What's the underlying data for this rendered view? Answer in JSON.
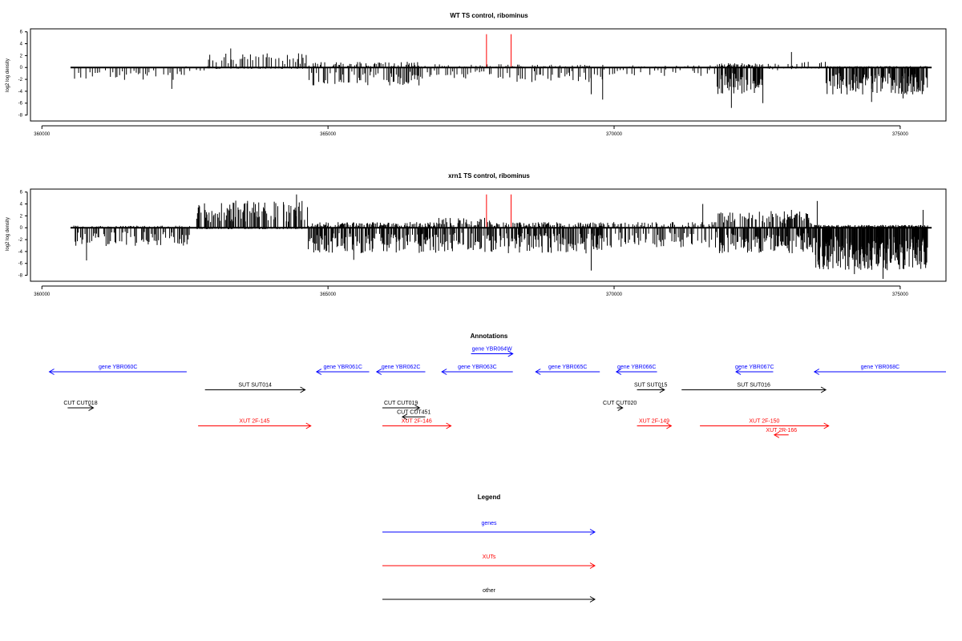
{
  "chart_data": [
    {
      "type": "bar",
      "title": "WT TS control, ribominus",
      "xlabel": "",
      "ylabel": "log2 log density",
      "xlim": [
        359800,
        375800
      ],
      "ylim": [
        -9,
        6.5
      ],
      "x_ticks": [
        360000,
        365000,
        370000,
        375000
      ],
      "y_ticks": [
        6,
        4,
        2,
        0,
        -2,
        -4,
        -6,
        -8
      ],
      "baseline_x": [
        360500,
        375550
      ],
      "red_markers": [
        {
          "x": 367770,
          "y": 5.6
        },
        {
          "x": 368200,
          "y": 5.6
        }
      ],
      "profile": [
        {
          "from": 360550,
          "to": 362500,
          "step": 40,
          "pos": 0.0,
          "neg": 1.8
        },
        {
          "from": 362500,
          "to": 362900,
          "step": 60,
          "pos": 0.2,
          "neg": 0.6
        },
        {
          "from": 362900,
          "to": 364650,
          "step": 25,
          "pos": 2.0,
          "neg": 0.2
        },
        {
          "from": 364650,
          "to": 366600,
          "step": 20,
          "pos": 0.8,
          "neg": 2.6
        },
        {
          "from": 366600,
          "to": 368200,
          "step": 40,
          "pos": 0.5,
          "neg": 1.6
        },
        {
          "from": 368200,
          "to": 369800,
          "step": 30,
          "pos": 0.4,
          "neg": 2.2
        },
        {
          "from": 369800,
          "to": 371800,
          "step": 50,
          "pos": 0.3,
          "neg": 1.2
        },
        {
          "from": 371800,
          "to": 372600,
          "step": 12,
          "pos": 0.6,
          "neg": 3.8
        },
        {
          "from": 372600,
          "to": 373700,
          "step": 50,
          "pos": 0.8,
          "neg": 0.5
        },
        {
          "from": 373700,
          "to": 375480,
          "step": 10,
          "pos": 0.2,
          "neg": 3.8
        }
      ],
      "spikes": [
        {
          "x": 362270,
          "y": -3.6
        },
        {
          "x": 363300,
          "y": 3.2
        },
        {
          "x": 369600,
          "y": -4.5
        },
        {
          "x": 369800,
          "y": -5.4
        },
        {
          "x": 372050,
          "y": -6.8
        },
        {
          "x": 372600,
          "y": -6.0
        },
        {
          "x": 373100,
          "y": 2.6
        },
        {
          "x": 374500,
          "y": -5.8
        },
        {
          "x": 375050,
          "y": -5.2
        }
      ]
    },
    {
      "type": "bar",
      "title": "xrn1 TS control, ribominus",
      "xlabel": "",
      "ylabel": "log2 log density",
      "xlim": [
        359800,
        375800
      ],
      "ylim": [
        -9,
        6.5
      ],
      "x_ticks": [
        360000,
        365000,
        370000,
        375000
      ],
      "y_ticks": [
        6,
        4,
        2,
        0,
        -2,
        -4,
        -6,
        -8
      ],
      "baseline_x": [
        360500,
        375550
      ],
      "red_markers": [
        {
          "x": 367770,
          "y": 5.6
        },
        {
          "x": 368200,
          "y": 5.6
        }
      ],
      "profile": [
        {
          "from": 360550,
          "to": 362600,
          "step": 20,
          "pos": 0.3,
          "neg": 2.6
        },
        {
          "from": 362700,
          "to": 364650,
          "step": 12,
          "pos": 3.8,
          "neg": 0.2
        },
        {
          "from": 364650,
          "to": 366900,
          "step": 12,
          "pos": 0.8,
          "neg": 3.6
        },
        {
          "from": 366900,
          "to": 367900,
          "step": 15,
          "pos": 1.4,
          "neg": 3.4
        },
        {
          "from": 367900,
          "to": 369800,
          "step": 12,
          "pos": 0.8,
          "neg": 3.6
        },
        {
          "from": 369800,
          "to": 371800,
          "step": 20,
          "pos": 0.8,
          "neg": 2.8
        },
        {
          "from": 371800,
          "to": 373500,
          "step": 12,
          "pos": 2.4,
          "neg": 3.6
        },
        {
          "from": 373500,
          "to": 375480,
          "step": 6,
          "pos": 0.4,
          "neg": 6.0
        }
      ],
      "spikes": [
        {
          "x": 360780,
          "y": -5.5
        },
        {
          "x": 364450,
          "y": 5.6
        },
        {
          "x": 365450,
          "y": -5.4
        },
        {
          "x": 369600,
          "y": -7.2
        },
        {
          "x": 371550,
          "y": 4.0
        },
        {
          "x": 373100,
          "y": 3.0
        },
        {
          "x": 373550,
          "y": 4.5
        },
        {
          "x": 374200,
          "y": -7.8
        },
        {
          "x": 374700,
          "y": -8.6
        },
        {
          "x": 375400,
          "y": 3.0
        }
      ]
    }
  ],
  "annotations": {
    "title": "Annotations",
    "features": [
      {
        "label": "gene YBR060C",
        "kind": "gene",
        "color": "#0000ff",
        "from": 362530,
        "to": 360130,
        "row": 0
      },
      {
        "label": "gene YBR061C",
        "kind": "gene",
        "color": "#0000ff",
        "from": 365720,
        "to": 364800,
        "row": 0
      },
      {
        "label": "gene YBR062C",
        "kind": "gene",
        "color": "#0000ff",
        "from": 366700,
        "to": 365850,
        "row": 0
      },
      {
        "label": "gene YBR063C",
        "kind": "gene",
        "color": "#0000ff",
        "from": 368230,
        "to": 366990,
        "row": 0
      },
      {
        "label": "gene YBR064W",
        "kind": "gene",
        "color": "#0000ff",
        "from": 367500,
        "to": 368230,
        "row": -1
      },
      {
        "label": "gene YBR065C",
        "kind": "gene",
        "color": "#0000ff",
        "from": 369750,
        "to": 368630,
        "row": 0
      },
      {
        "label": "gene YBR066C",
        "kind": "gene",
        "color": "#0000ff",
        "from": 370750,
        "to": 370040,
        "row": 0
      },
      {
        "label": "gene YBR067C",
        "kind": "gene",
        "color": "#0000ff",
        "from": 372780,
        "to": 372130,
        "row": 0
      },
      {
        "label": "gene YBR068C",
        "kind": "gene",
        "color": "#0000ff",
        "from": 375800,
        "to": 373500,
        "row": 0
      },
      {
        "label": "SUT SUT014",
        "kind": "other",
        "color": "#000000",
        "from": 362850,
        "to": 364600,
        "row": 1
      },
      {
        "label": "SUT SUT015",
        "kind": "other",
        "color": "#000000",
        "from": 370400,
        "to": 370880,
        "row": 1
      },
      {
        "label": "SUT SUT016",
        "kind": "other",
        "color": "#000000",
        "from": 371180,
        "to": 373700,
        "row": 1
      },
      {
        "label": "CUT CUT018",
        "kind": "other",
        "color": "#000000",
        "from": 360450,
        "to": 360900,
        "row": 2
      },
      {
        "label": "CUT CUT019",
        "kind": "other",
        "color": "#000000",
        "from": 365950,
        "to": 366600,
        "row": 2
      },
      {
        "label": "CUT CUT451",
        "kind": "other",
        "color": "#000000",
        "from": 366700,
        "to": 366300,
        "row": 2.5
      },
      {
        "label": "CUT CUT020",
        "kind": "other",
        "color": "#000000",
        "from": 370050,
        "to": 370150,
        "row": 2
      },
      {
        "label": "XUT 2F-145",
        "kind": "xut",
        "color": "#ff0000",
        "from": 362730,
        "to": 364700,
        "row": 3
      },
      {
        "label": "XUT 2F-146",
        "kind": "xut",
        "color": "#ff0000",
        "from": 365950,
        "to": 367150,
        "row": 3
      },
      {
        "label": "XUT 2F-149",
        "kind": "xut",
        "color": "#ff0000",
        "from": 370400,
        "to": 371000,
        "row": 3
      },
      {
        "label": "XUT 2F-150",
        "kind": "xut",
        "color": "#ff0000",
        "from": 371500,
        "to": 373750,
        "row": 3
      },
      {
        "label": "XUT 2R-166",
        "kind": "xut",
        "color": "#ff0000",
        "from": 373050,
        "to": 372800,
        "row": 3.5
      }
    ]
  },
  "legend": {
    "title": "Legend",
    "items": [
      {
        "label": "genes",
        "color": "#0000ff"
      },
      {
        "label": "XUTs",
        "color": "#ff0000"
      },
      {
        "label": "other",
        "color": "#000000"
      }
    ]
  }
}
